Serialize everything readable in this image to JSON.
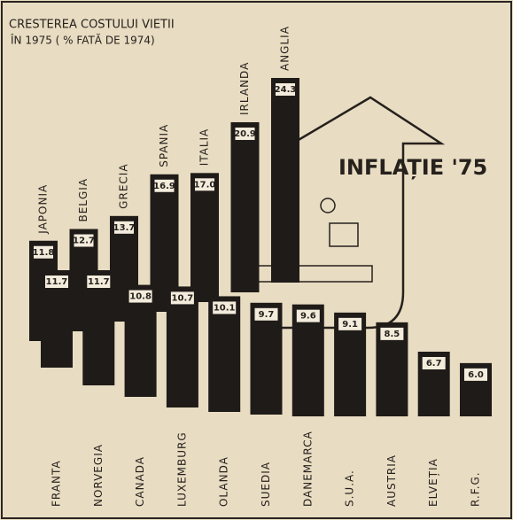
{
  "chart_data": [
    {
      "type": "bar",
      "title": "CRESTEREA COSTULUI VIETII",
      "subtitle": "ÎN 1975 ( % FATĂ DE 1974)",
      "annotation": "INFLAȚIE '75",
      "color": "#1f1b18",
      "categories": [
        "JAPONIA",
        "BELGIA",
        "GRECIA",
        "SPANIA",
        "ITALIA",
        "IRLANDA",
        "ANGLIA"
      ],
      "values": [
        11.8,
        12.7,
        13.7,
        16.9,
        17.0,
        20.9,
        24.3
      ],
      "value_labels": [
        "11.8",
        "12.7",
        "13.7",
        "16.9",
        "17.0",
        "20.9",
        "24.3"
      ]
    },
    {
      "type": "bar",
      "color": "#1f1b18",
      "categories": [
        "FRANTA",
        "NORVEGIA",
        "CANADA",
        "LUXEMBURG",
        "OLANDA",
        "SUEDIA",
        "DANEMARCA",
        "S.U.A.",
        "AUSTRIA",
        "ELVEȚIA",
        "R.F.G."
      ],
      "values": [
        11.7,
        11.7,
        10.8,
        10.7,
        10.1,
        9.7,
        9.6,
        9.1,
        8.5,
        6.7,
        6.0
      ],
      "value_labels": [
        "11.7",
        "11.7",
        "10.8",
        "10.7",
        "10.1",
        "9.7",
        "9.6",
        "9.1",
        "8.5",
        "6.7",
        "6.0"
      ]
    }
  ]
}
